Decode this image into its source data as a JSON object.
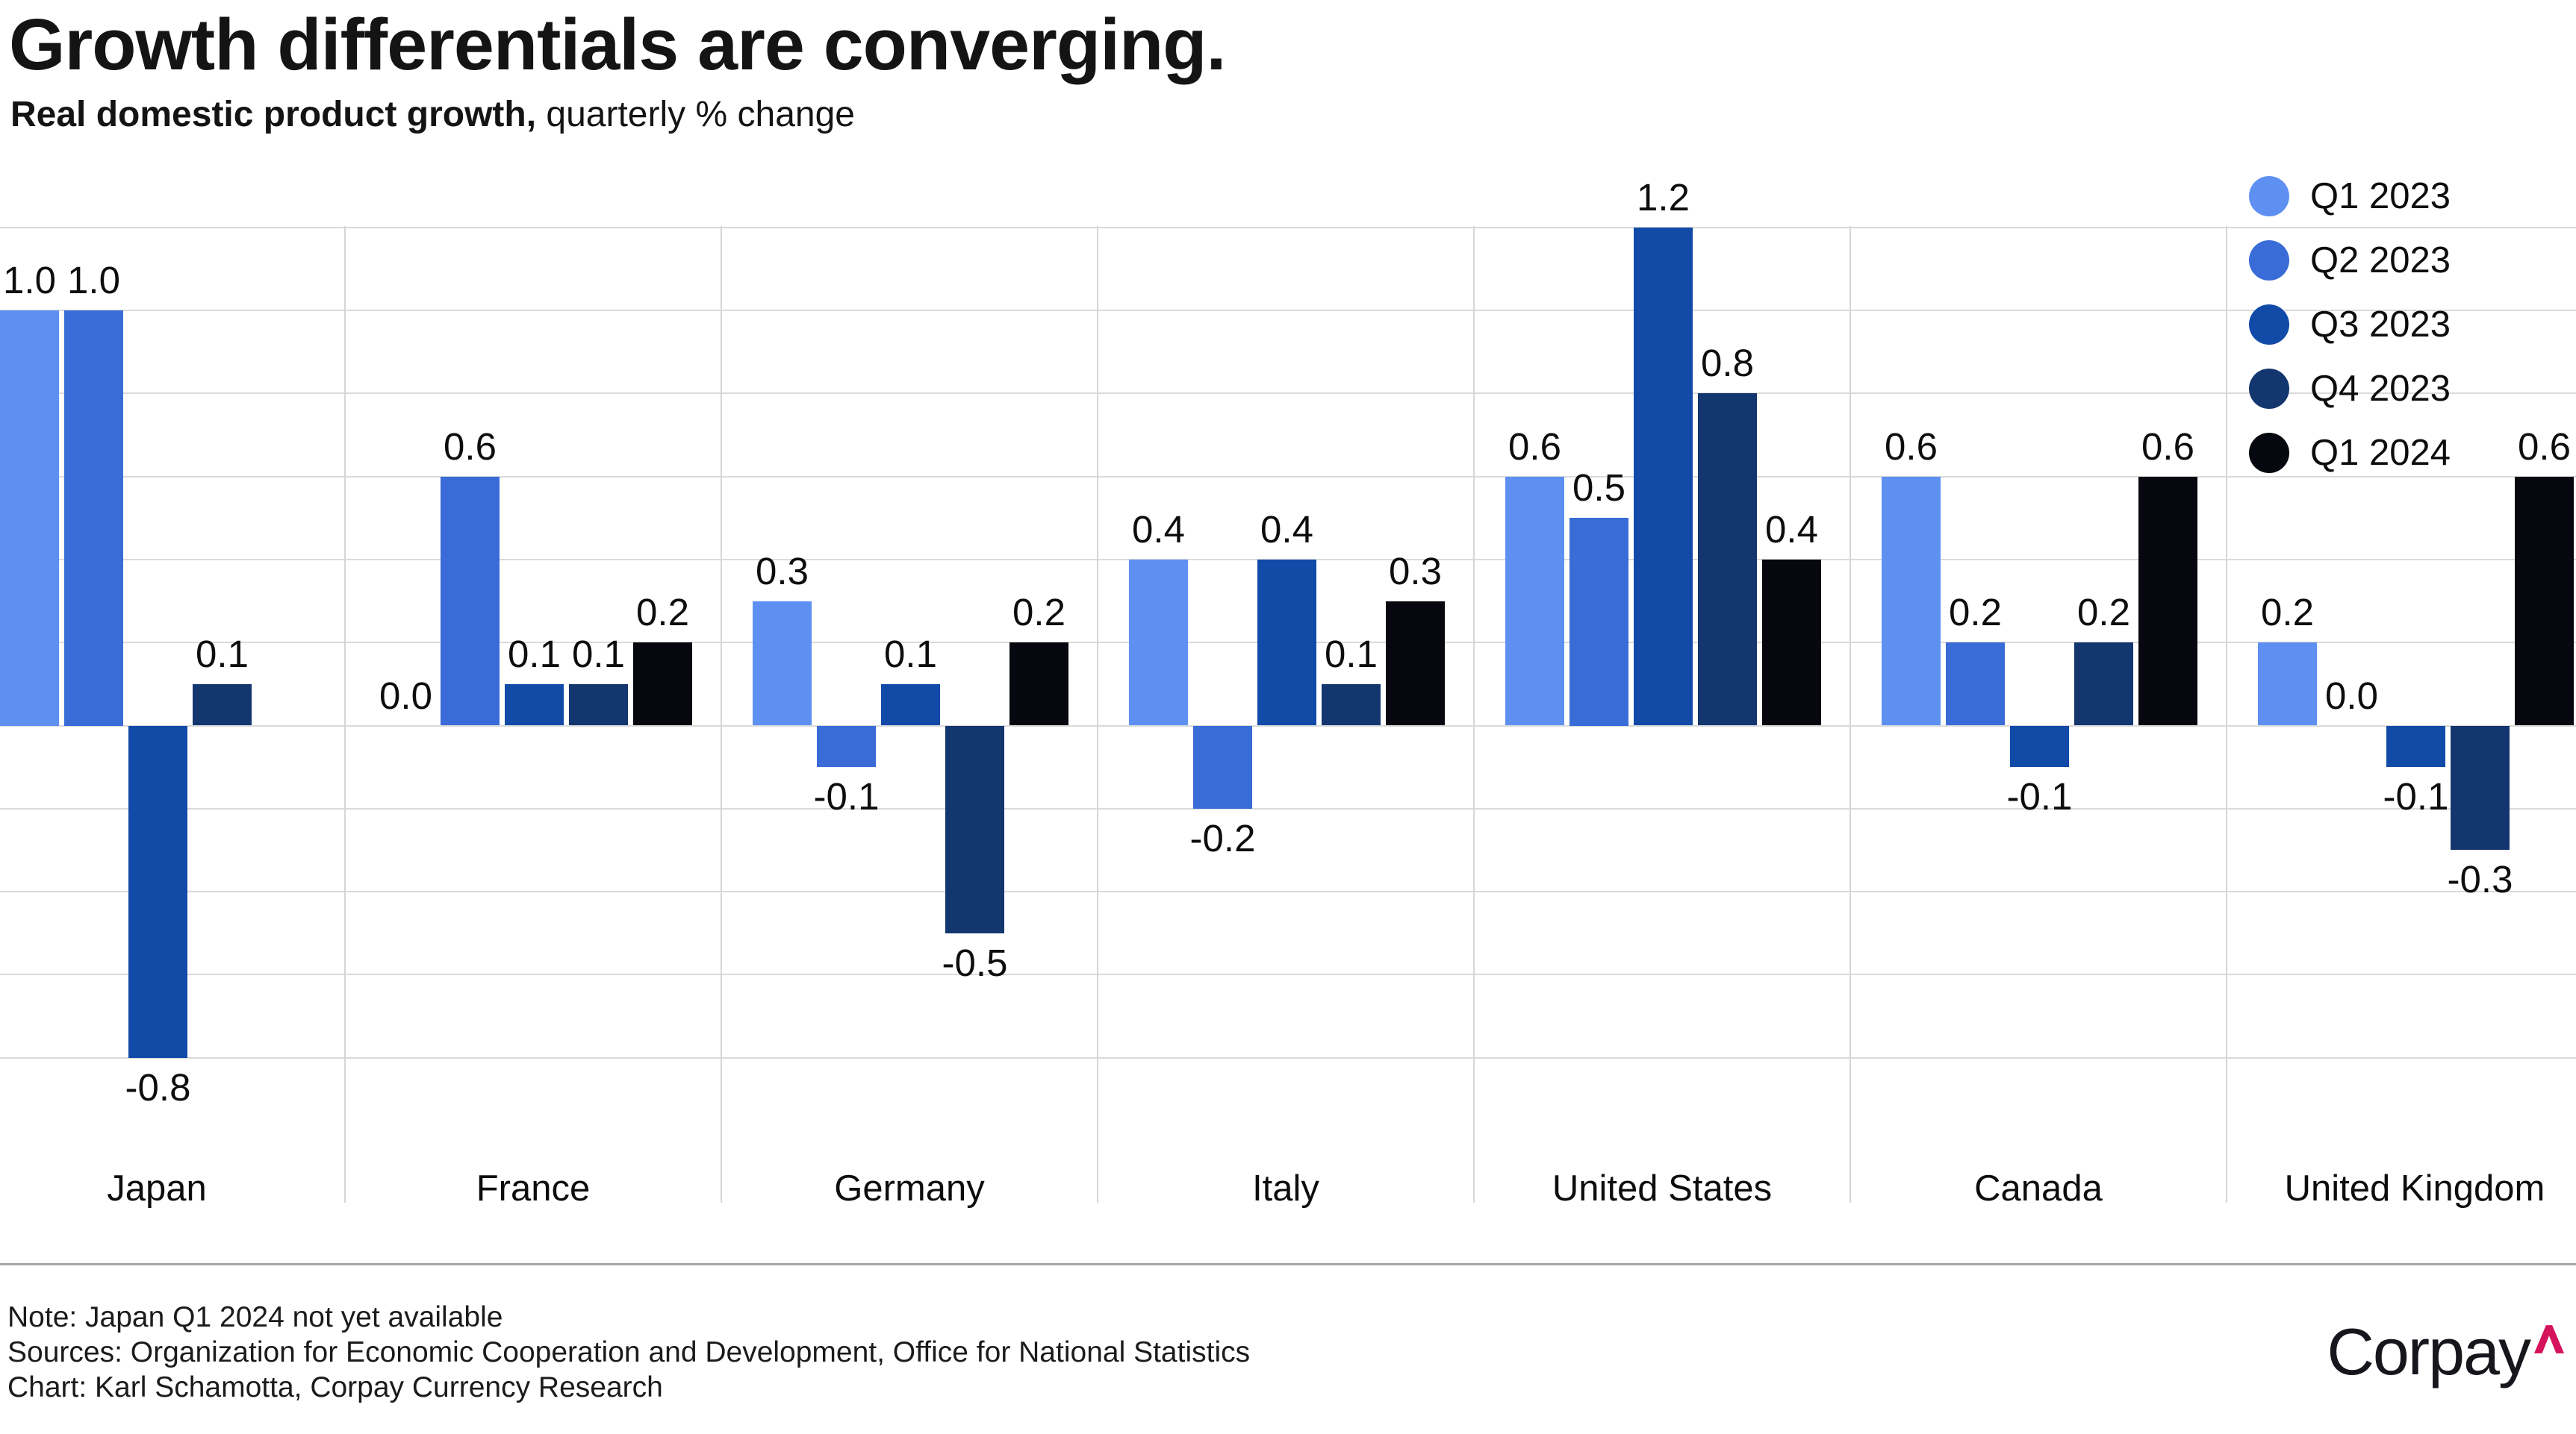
{
  "chart_data": {
    "type": "bar",
    "title": "Growth differentials are converging.",
    "subtitle": {
      "bold": "Real domestic product growth,",
      "rest": " quarterly % change"
    },
    "xlabel": "",
    "ylabel": "",
    "categories": [
      "Japan",
      "France",
      "Germany",
      "Italy",
      "United States",
      "Canada",
      "United Kingdom"
    ],
    "series": [
      {
        "name": "Q1 2023",
        "color": "#5E90F2",
        "values": [
          1.0,
          0.0,
          0.3,
          0.4,
          0.6,
          0.6,
          0.2
        ]
      },
      {
        "name": "Q2 2023",
        "color": "#3A6CD7",
        "values": [
          1.0,
          0.6,
          -0.1,
          -0.2,
          0.5,
          0.2,
          0.0
        ]
      },
      {
        "name": "Q3 2023",
        "color": "#124AA8",
        "values": [
          -0.8,
          0.1,
          0.1,
          0.4,
          1.2,
          -0.1,
          -0.1
        ]
      },
      {
        "name": "Q4 2023",
        "color": "#14366F",
        "values": [
          0.1,
          0.1,
          -0.5,
          0.1,
          0.8,
          0.2,
          -0.3
        ]
      },
      {
        "name": "Q1 2024",
        "color": "#07080F",
        "values": [
          null,
          0.2,
          0.2,
          0.3,
          0.4,
          0.6,
          0.6
        ]
      }
    ],
    "ylim": [
      -1.15,
      1.3
    ],
    "gridline_values": [
      1.2,
      1.0,
      0.8,
      0.6,
      0.4,
      0.2,
      0.0,
      -0.2,
      -0.4,
      -0.6,
      -0.8
    ],
    "grid": true,
    "legend_position": "top-right",
    "value_label_decimals": 1
  },
  "footer": {
    "note": "Note: Japan Q1 2024 not yet available",
    "sources": "Sources: Organization for Economic Cooperation and Development, Office for National Statistics",
    "credit": "Chart: Karl Schamotta, Corpay Currency Research"
  },
  "logo": {
    "text": "Corpay",
    "caret_color": "#D5125C"
  }
}
